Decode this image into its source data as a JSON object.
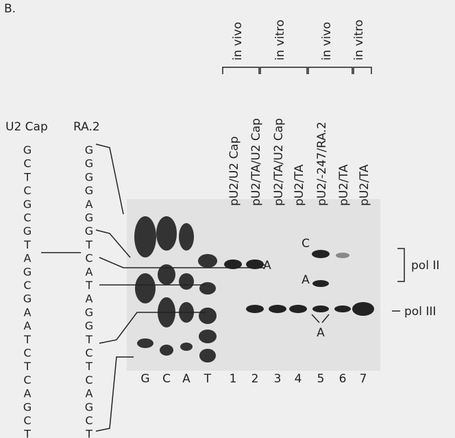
{
  "panel_label": "B.",
  "sequences": [
    {
      "label": "U2 Cap",
      "bases": [
        "G",
        "C",
        "T",
        "C",
        "G",
        "C",
        "G",
        "T",
        "A",
        "G",
        "C",
        "G",
        "A",
        "A",
        "T",
        "C",
        "T",
        "C",
        "A",
        "G",
        "C",
        "T"
      ]
    },
    {
      "label": "RA.2",
      "bases": [
        "G",
        "G",
        "G",
        "G",
        "A",
        "G",
        "G",
        "T",
        "C",
        "A",
        "T",
        "A",
        "G",
        "G",
        "T",
        "C",
        "T",
        "C",
        "A",
        "G",
        "C",
        "T"
      ]
    }
  ],
  "groups": [
    {
      "label": "in vivo"
    },
    {
      "label": "in vitro"
    },
    {
      "label": "in vivo"
    },
    {
      "label": "in vitro"
    }
  ],
  "lanes": [
    {
      "name": "pU2/U2 Cap",
      "number": "1"
    },
    {
      "name": "pU2/TA/U2 Cap",
      "number": "2"
    },
    {
      "name": "pU2/TA/U2 Cap",
      "number": "3"
    },
    {
      "name": "pU2/TA",
      "number": "4"
    },
    {
      "name": "pU2/-247/RA.2",
      "number": "5"
    },
    {
      "name": "pU2/TA",
      "number": "6"
    },
    {
      "name": "pU2/TA",
      "number": "7"
    }
  ],
  "ladder": [
    "G",
    "C",
    "A",
    "T"
  ],
  "band_labels": [
    "C",
    "A",
    "A",
    "A"
  ],
  "side_labels": [
    "pol II",
    "pol III"
  ]
}
